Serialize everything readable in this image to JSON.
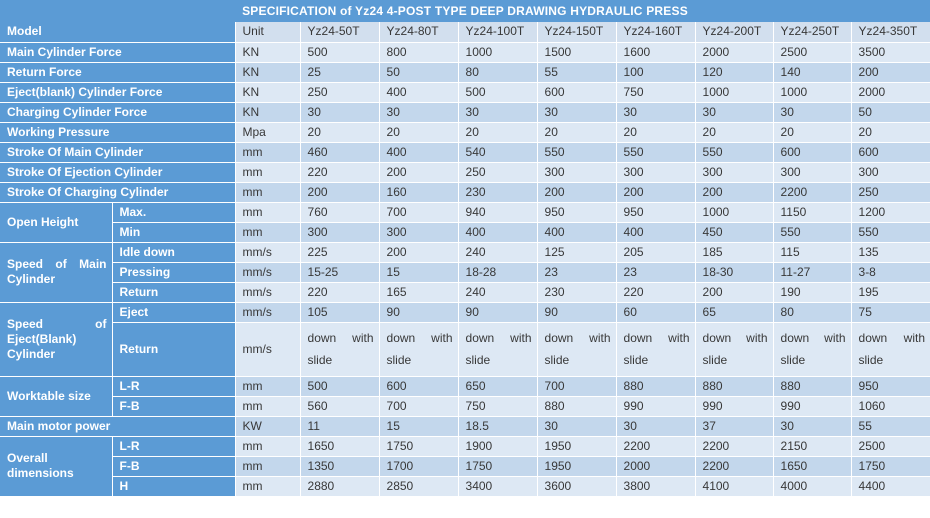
{
  "title": "SPECIFICATION of Yz24 4-POST TYPE DEEP DRAWING HYDRAULIC PRESS",
  "colors": {
    "header_blue": "#5b9bd5",
    "row_light": "#dde8f4",
    "row_dark": "#c3d7ec",
    "row_model": "#d2dfee",
    "data_text": "#383838",
    "grid_border": "#ffffff"
  },
  "table": {
    "rows": [
      {
        "label": "Model",
        "unit": "Unit",
        "shade": "model",
        "values": [
          "Yz24-50T",
          "Yz24-80T",
          "Yz24-100T",
          "Yz24-150T",
          "Yz24-160T",
          "Yz24-200T",
          "Yz24-250T",
          "Yz24-350T"
        ]
      },
      {
        "label": "Main Cylinder Force",
        "unit": "KN",
        "shade": "light",
        "values": [
          "500",
          "800",
          "1000",
          "1500",
          "1600",
          "2000",
          "2500",
          "3500"
        ]
      },
      {
        "label": "Return Force",
        "unit": "KN",
        "shade": "dark",
        "values": [
          "25",
          "50",
          "80",
          "55",
          "100",
          "120",
          "140",
          "200"
        ]
      },
      {
        "label": "Eject(blank) Cylinder Force",
        "unit": "KN",
        "shade": "light",
        "values": [
          "250",
          "400",
          "500",
          "600",
          "750",
          "1000",
          "1000",
          "2000"
        ]
      },
      {
        "label": "Charging Cylinder Force",
        "unit": "KN",
        "shade": "dark",
        "values": [
          "30",
          "30",
          "30",
          "30",
          "30",
          "30",
          "30",
          "50"
        ]
      },
      {
        "label": "Working Pressure",
        "unit": "Mpa",
        "shade": "light",
        "values": [
          "20",
          "20",
          "20",
          "20",
          "20",
          "20",
          "20",
          "20"
        ]
      },
      {
        "label": "Stroke Of Main Cylinder",
        "unit": "mm",
        "shade": "dark",
        "values": [
          "460",
          "400",
          "540",
          "550",
          "550",
          "550",
          "600",
          "600"
        ]
      },
      {
        "label": "Stroke Of Ejection Cylinder",
        "unit": "mm",
        "shade": "light",
        "values": [
          "220",
          "200",
          "250",
          "300",
          "300",
          "300",
          "300",
          "300"
        ]
      },
      {
        "label": "Stroke Of Charging Cylinder",
        "unit": "mm",
        "shade": "dark",
        "values": [
          "200",
          "160",
          "230",
          "200",
          "200",
          "200",
          "2200",
          "250"
        ]
      },
      {
        "group": {
          "label": "Open Height",
          "span": 2
        },
        "sub": "Max.",
        "unit": "mm",
        "shade": "light",
        "values": [
          "760",
          "700",
          "940",
          "950",
          "950",
          "1000",
          "1150",
          "1200"
        ]
      },
      {
        "sub": "Min",
        "unit": "mm",
        "shade": "dark",
        "values": [
          "300",
          "300",
          "400",
          "400",
          "400",
          "450",
          "550",
          "550"
        ]
      },
      {
        "group": {
          "label": "Speed of Main Cylinder",
          "span": 3
        },
        "sub": "Idle down",
        "unit": "mm/s",
        "shade": "light",
        "values": [
          "225",
          "200",
          "240",
          "125",
          "205",
          "185",
          "115",
          "135"
        ]
      },
      {
        "sub": "Pressing",
        "unit": "mm/s",
        "shade": "dark",
        "values": [
          "15-25",
          "15",
          "18-28",
          "23",
          "23",
          "18-30",
          "11-27",
          "3-8"
        ]
      },
      {
        "sub": "Return",
        "unit": "mm/s",
        "shade": "light",
        "values": [
          "220",
          "165",
          "240",
          "230",
          "220",
          "200",
          "190",
          "195"
        ]
      },
      {
        "group": {
          "label": "Speed of Eject(Blank) Cylinder",
          "span": 2
        },
        "sub": "Eject",
        "unit": "mm/s",
        "shade": "dark",
        "values": [
          "105",
          "90",
          "90",
          "90",
          "60",
          "65",
          "80",
          "75"
        ]
      },
      {
        "sub": "Return",
        "unit": "mm/s",
        "shade": "light",
        "tall": true,
        "values": [
          "down with slide",
          "down with slide",
          "down with slide",
          "down with slide",
          "down with slide",
          "down with slide",
          "down with slide",
          "down with slide"
        ]
      },
      {
        "group": {
          "label": "Worktable size",
          "span": 2
        },
        "sub": "L-R",
        "unit": "mm",
        "shade": "dark",
        "values": [
          "500",
          "600",
          "650",
          "700",
          "880",
          "880",
          "880",
          "950"
        ]
      },
      {
        "sub": "F-B",
        "unit": "mm",
        "shade": "light",
        "values": [
          "560",
          "700",
          "750",
          "880",
          "990",
          "990",
          "990",
          "1060"
        ]
      },
      {
        "label": "Main motor power",
        "unit": "KW",
        "shade": "dark",
        "values": [
          "11",
          "15",
          "18.5",
          "30",
          "30",
          "37",
          "30",
          "55"
        ]
      },
      {
        "group": {
          "label": "Overall dimensions",
          "span": 3
        },
        "sub": "L-R",
        "unit": "mm",
        "shade": "light",
        "values": [
          "1650",
          "1750",
          "1900",
          "1950",
          "2200",
          "2200",
          "2150",
          "2500"
        ]
      },
      {
        "sub": "F-B",
        "unit": "mm",
        "shade": "dark",
        "values": [
          "1350",
          "1700",
          "1750",
          "1950",
          "2000",
          "2200",
          "1650",
          "1750"
        ]
      },
      {
        "sub": "H",
        "unit": "mm",
        "shade": "light",
        "values": [
          "2880",
          "2850",
          "3400",
          "3600",
          "3800",
          "4100",
          "4000",
          "4400"
        ]
      }
    ]
  }
}
